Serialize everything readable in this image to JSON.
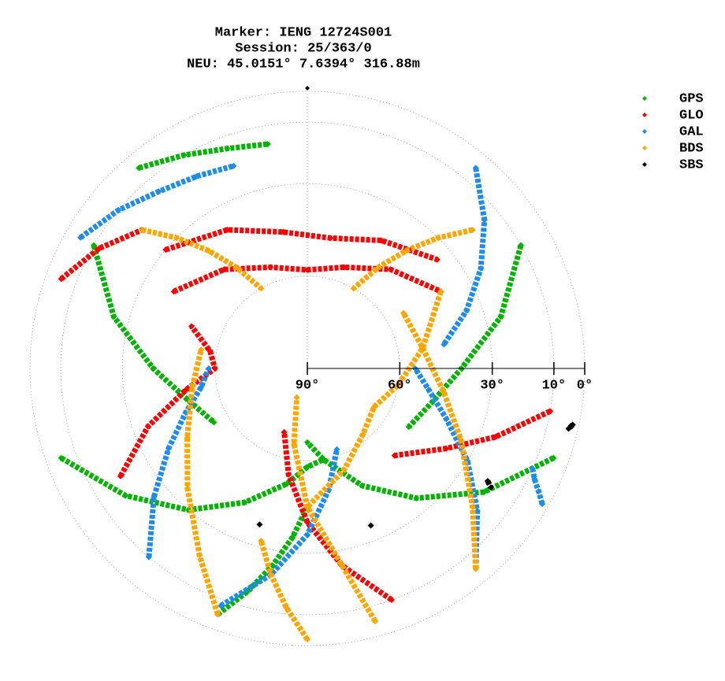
{
  "chart_data": {
    "type": "skyplot",
    "title": [
      "Marker: IENG 12724S001",
      "Session: 25/363/0",
      "NEU: 45.0151° 7.6394° 316.88m"
    ],
    "rlim": [
      90,
      0
    ],
    "rticks": [
      {
        "value": 90,
        "label": "90°"
      },
      {
        "value": 60,
        "label": "60°"
      },
      {
        "value": 30,
        "label": "30°"
      },
      {
        "value": 10,
        "label": "10°"
      },
      {
        "value": 0,
        "label": "0°"
      }
    ],
    "grid": true,
    "legend": "upper right",
    "series": [
      {
        "name": "GPS",
        "color": "#00b400",
        "tracks": [
          {
            "az": [
              250,
              235,
              220,
              205,
              190,
              180,
              170
            ],
            "el": [
              5,
              18,
              30,
              42,
              52,
              58,
              60
            ]
          },
          {
            "az": [
              110,
              125,
              140,
              155,
              170,
              180
            ],
            "el": [
              5,
              20,
              35,
              48,
              60,
              66
            ]
          },
          {
            "az": [
              300,
              285,
              270,
              255,
              240
            ],
            "el": [
              10,
              25,
              40,
              50,
              55
            ]
          },
          {
            "az": [
              60,
              75,
              90,
              105,
              120
            ],
            "el": [
              10,
              25,
              40,
              48,
              52
            ]
          },
          {
            "az": [
              200,
              195,
              190,
              185,
              180
            ],
            "el": [
              5,
              15,
              25,
              35,
              45
            ]
          },
          {
            "az": [
              320,
              330,
              340,
              350
            ],
            "el": [
              5,
              10,
              14,
              16
            ]
          }
        ]
      },
      {
        "name": "GLO",
        "color": "#ff0000",
        "tracks": [
          {
            "az": [
              300,
              320,
              340,
              0,
              20,
              40,
              60
            ],
            "el": [
              40,
              48,
              55,
              58,
              55,
              48,
              40
            ]
          },
          {
            "az": [
              310,
              330,
              350,
              10,
              30,
              50
            ],
            "el": [
              30,
              38,
              45,
              47,
              42,
              35
            ]
          },
          {
            "az": [
              160,
              170,
              180,
              190,
              200
            ],
            "el": [
              10,
              25,
              40,
              55,
              68
            ]
          },
          {
            "az": [
              240,
              250,
              260,
              270,
              280,
              290
            ],
            "el": [
              20,
              35,
              50,
              60,
              58,
              50
            ]
          },
          {
            "az": [
              100,
              110,
              120,
              135
            ],
            "el": [
              10,
              25,
              38,
              50
            ]
          },
          {
            "az": [
              290,
              300,
              310
            ],
            "el": [
              5,
              12,
              20
            ]
          }
        ]
      },
      {
        "name": "GAL",
        "color": "#1e8ced",
        "tracks": [
          {
            "az": [
              200,
              190,
              180,
              170,
              160
            ],
            "el": [
              8,
              22,
              36,
              50,
              62
            ]
          },
          {
            "az": [
              140,
              130,
              120,
              110,
              100,
              90
            ],
            "el": [
              5,
              18,
              30,
              42,
              50,
              55
            ]
          },
          {
            "az": [
              220,
              230,
              240,
              250,
              260,
              270
            ],
            "el": [
              10,
              25,
              38,
              48,
              55,
              58
            ]
          },
          {
            "az": [
              120,
              118,
              116,
              114
            ],
            "el": [
              2,
              5,
              8,
              10
            ]
          },
          {
            "az": [
              300,
              310,
              320,
              330,
              340
            ],
            "el": [
              5,
              10,
              15,
              18,
              20
            ]
          },
          {
            "az": [
              40,
              50,
              60,
              70,
              80
            ],
            "el": [
              5,
              15,
              25,
              35,
              45
            ]
          }
        ]
      },
      {
        "name": "BDS",
        "color": "#ffa500",
        "tracks": [
          {
            "az": [
              165,
              170,
              180,
              190,
              200
            ],
            "el": [
              5,
              25,
              45,
              65,
              80
            ]
          },
          {
            "az": [
              200,
              210,
              225,
              240,
              260,
              280
            ],
            "el": [
              5,
              20,
              35,
              45,
              52,
              55
            ]
          },
          {
            "az": [
              140,
              130,
              115,
              100,
              80,
              60
            ],
            "el": [
              5,
              20,
              35,
              45,
              52,
              54
            ]
          },
          {
            "az": [
              50,
              45,
              40,
              35,
              30
            ],
            "el": [
              20,
              30,
              40,
              50,
              60
            ]
          },
          {
            "az": [
              310,
              315,
              320,
              325,
              330
            ],
            "el": [
              20,
              30,
              40,
              50,
              60
            ]
          },
          {
            "az": [
              180,
              185,
              190,
              195
            ],
            "el": [
              2,
              12,
              22,
              32
            ]
          },
          {
            "az": [
              60,
              80,
              100,
              120,
              140,
              160,
              180
            ],
            "el": [
              40,
              52,
              60,
              65,
              62,
              55,
              45
            ]
          }
        ]
      },
      {
        "name": "SBS",
        "color": "#000000",
        "tracks": [
          {
            "az": [
              122,
              123
            ],
            "el": [
              21,
              19
            ]
          },
          {
            "az": [
              102,
              103
            ],
            "el": [
              2,
              3
            ]
          },
          {
            "az": [
              197
            ],
            "el": [
              37
            ]
          },
          {
            "az": [
              158
            ],
            "el": [
              35
            ]
          }
        ]
      }
    ]
  }
}
